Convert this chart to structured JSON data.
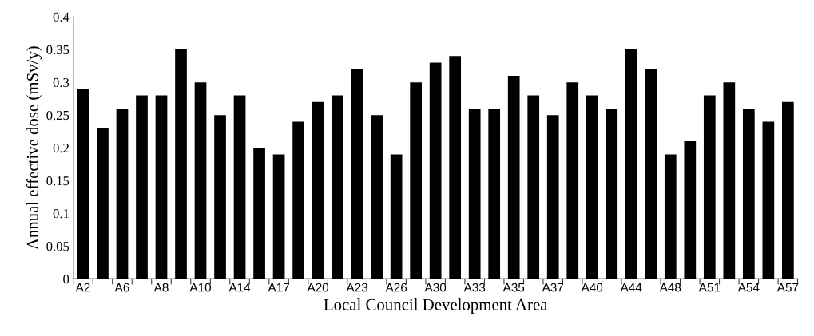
{
  "chart_data": {
    "type": "bar",
    "xlabel": "Local Council Development Area",
    "ylabel": "Annual effective dose (mSv/y)",
    "categories": [
      "A2",
      null,
      "A6",
      null,
      "A8",
      null,
      "A10",
      null,
      "A14",
      null,
      "A17",
      null,
      "A20",
      null,
      "A23",
      null,
      "A26",
      null,
      "A30",
      null,
      "A33",
      null,
      "A35",
      null,
      "A37",
      null,
      "A40",
      null,
      "A44",
      null,
      "A48",
      null,
      "A51",
      null,
      "A54",
      null,
      "A57"
    ],
    "values": [
      0.29,
      0.23,
      0.26,
      0.28,
      0.28,
      0.35,
      0.3,
      0.25,
      0.28,
      0.2,
      0.19,
      0.24,
      0.27,
      0.28,
      0.32,
      0.25,
      0.19,
      0.3,
      0.33,
      0.34,
      0.26,
      0.26,
      0.31,
      0.28,
      0.25,
      0.3,
      0.28,
      0.26,
      0.35,
      0.32,
      0.19,
      0.21,
      0.28,
      0.3,
      0.26,
      0.24,
      0.27
    ],
    "color": "#000000",
    "ylim": [
      0,
      0.4
    ],
    "yticks": [
      0,
      0.05,
      0.1,
      0.15,
      0.2,
      0.25,
      0.3,
      0.35,
      0.4
    ],
    "grid": false
  }
}
